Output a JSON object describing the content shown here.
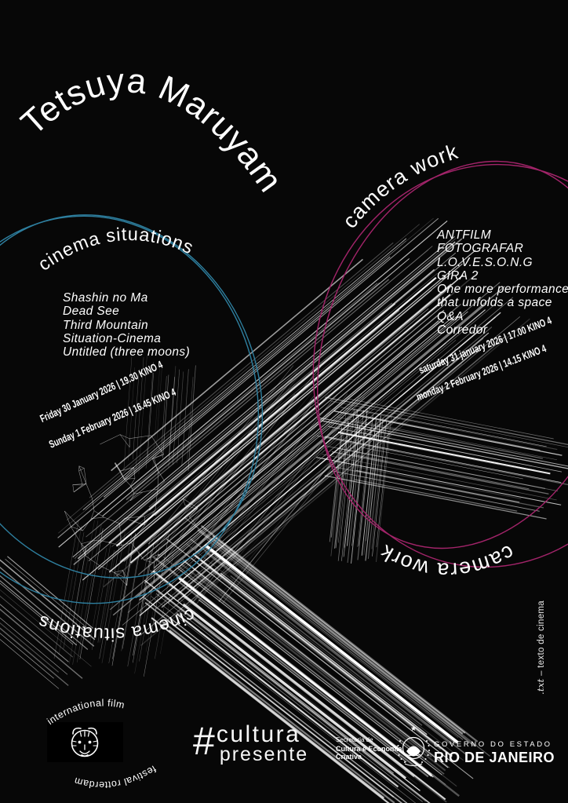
{
  "poster": {
    "bg": "#070707",
    "accent_blue": "#2e7f9f",
    "accent_pink": "#a3246a",
    "line_art_color": "#ffffff"
  },
  "title": "Tetsuya Maruyama",
  "cinema_situations": {
    "label_top": "cinema situations",
    "label_bottom": "cinema situations",
    "films": [
      "Shashin no Ma",
      "Dead See",
      "Third Mountain",
      "Situation-Cinema",
      "Untitled (three moons)"
    ],
    "screenings": [
      "Friday 30 January 2026  |  19.30 KINO 4",
      "Sunday 1 February 2026  |  16.45 KINO 4"
    ]
  },
  "camera_work": {
    "label_top": "camera work",
    "label_bottom": "camera work",
    "films": [
      "ANTFILM",
      "FOTOGRAFAR",
      "L.O.V.E.S.O.N.G",
      "GIRA 2",
      "One more performance",
      "that unfolds a space",
      "Q&A",
      "Corredor"
    ],
    "screenings": [
      "saturday 31 january 2026  |  17.00 KINO 4",
      "monday 2 February 2026  |  14.15 KINO 4"
    ]
  },
  "side_note": {
    "txt": ".txt",
    "rest": " – texto de cinema"
  },
  "footer": {
    "iffr": {
      "top": "international film",
      "bottom": "festival rotterdam"
    },
    "cultura": {
      "hash": "#",
      "line1": "cultura",
      "line2": "presente"
    },
    "secretaria": {
      "line1": "Secretaria de",
      "line2": "Cultura e Economia",
      "line3": "Criativa"
    },
    "governo": {
      "line1": "GOVERNO DO ESTADO",
      "line2": "RIO DE JANEIRO"
    }
  }
}
